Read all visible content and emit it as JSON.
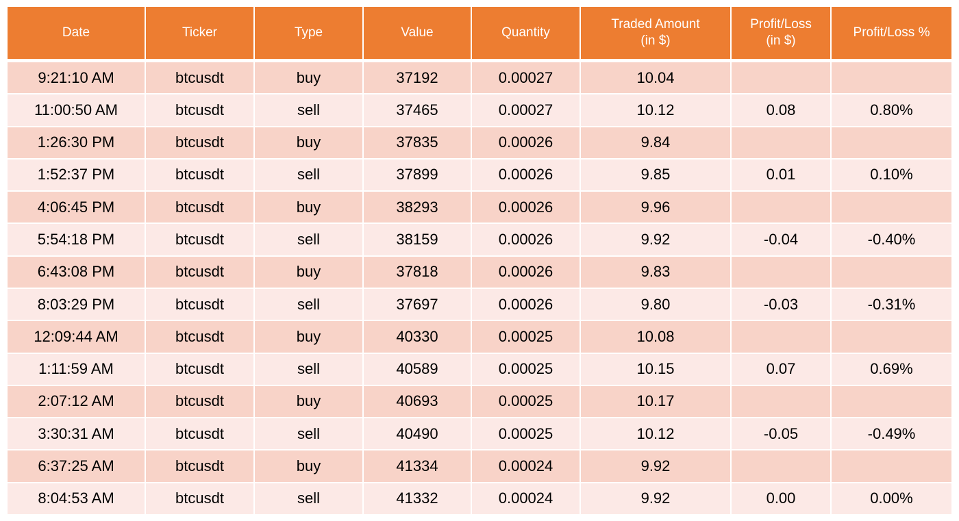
{
  "table": {
    "headers": [
      [
        "Date"
      ],
      [
        "Ticker"
      ],
      [
        "Type"
      ],
      [
        "Value"
      ],
      [
        "Quantity"
      ],
      [
        "Traded Amount",
        "(in $)"
      ],
      [
        "Profit/Loss",
        "(in $)"
      ],
      [
        "Profit/Loss %"
      ]
    ],
    "rows": [
      [
        "9:21:10 AM",
        "btcusdt",
        "buy",
        "37192",
        "0.00027",
        "10.04",
        null,
        null
      ],
      [
        "11:00:50 AM",
        "btcusdt",
        "sell",
        "37465",
        "0.00027",
        "10.12",
        "0.08",
        "0.80%"
      ],
      [
        "1:26:30 PM",
        "btcusdt",
        "buy",
        "37835",
        "0.00026",
        "9.84",
        null,
        null
      ],
      [
        "1:52:37 PM",
        "btcusdt",
        "sell",
        "37899",
        "0.00026",
        "9.85",
        "0.01",
        "0.10%"
      ],
      [
        "4:06:45 PM",
        "btcusdt",
        "buy",
        "38293",
        "0.00026",
        "9.96",
        null,
        null
      ],
      [
        "5:54:18 PM",
        "btcusdt",
        "sell",
        "38159",
        "0.00026",
        "9.92",
        "-0.04",
        "-0.40%"
      ],
      [
        "6:43:08 PM",
        "btcusdt",
        "buy",
        "37818",
        "0.00026",
        "9.83",
        null,
        null
      ],
      [
        "8:03:29 PM",
        "btcusdt",
        "sell",
        "37697",
        "0.00026",
        "9.80",
        "-0.03",
        "-0.31%"
      ],
      [
        "12:09:44 AM",
        "btcusdt",
        "buy",
        "40330",
        "0.00025",
        "10.08",
        null,
        null
      ],
      [
        "1:11:59 AM",
        "btcusdt",
        "sell",
        "40589",
        "0.00025",
        "10.15",
        "0.07",
        "0.69%"
      ],
      [
        "2:07:12 AM",
        "btcusdt",
        "buy",
        "40693",
        "0.00025",
        "10.17",
        null,
        null
      ],
      [
        "3:30:31 AM",
        "btcusdt",
        "sell",
        "40490",
        "0.00025",
        "10.12",
        "-0.05",
        "-0.49%"
      ],
      [
        "6:37:25 AM",
        "btcusdt",
        "buy",
        "41334",
        "0.00024",
        "9.92",
        null,
        null
      ],
      [
        "8:04:53 AM",
        "btcusdt",
        "sell",
        "41332",
        "0.00024",
        "9.92",
        "0.00",
        "0.00%"
      ]
    ]
  }
}
